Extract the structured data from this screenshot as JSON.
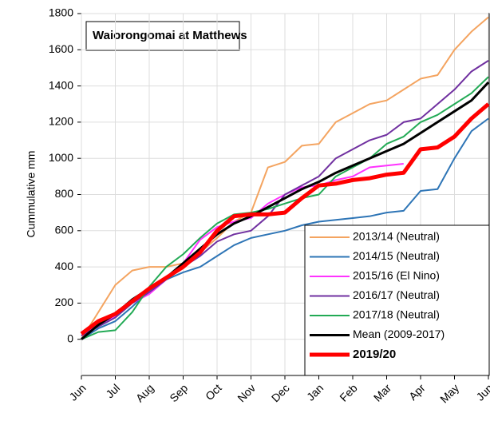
{
  "chart_data": {
    "type": "line",
    "title": "Waiorongomai at Matthews",
    "y_label": "Cummulative mm",
    "x": [
      0,
      0.5,
      1,
      1.5,
      2,
      2.5,
      3,
      3.5,
      4,
      4.5,
      5,
      5.5,
      6,
      6.5,
      7,
      7.5,
      8,
      8.5,
      9,
      9.5,
      10,
      10.5,
      11,
      11.5,
      12
    ],
    "xlim": [
      0,
      12
    ],
    "xticks": [
      {
        "value": 0,
        "label": "Jun"
      },
      {
        "value": 1,
        "label": "Jul"
      },
      {
        "value": 2,
        "label": "Aug"
      },
      {
        "value": 3,
        "label": "Sep"
      },
      {
        "value": 4,
        "label": "Oct"
      },
      {
        "value": 5,
        "label": "Nov"
      },
      {
        "value": 6,
        "label": "Dec"
      },
      {
        "value": 7,
        "label": "Jan"
      },
      {
        "value": 8,
        "label": "Feb"
      },
      {
        "value": 9,
        "label": "Mar"
      },
      {
        "value": 10,
        "label": "Apr"
      },
      {
        "value": 11,
        "label": "May"
      },
      {
        "value": 12,
        "label": "Jun"
      }
    ],
    "ylim": [
      -200,
      1800
    ],
    "yticks": [
      0,
      200,
      400,
      600,
      800,
      1000,
      1200,
      1400,
      1600,
      1800
    ],
    "series": [
      {
        "name": "2013/14 (Neutral)",
        "color": "#f4a460",
        "width": 2,
        "values": [
          0,
          150,
          300,
          380,
          400,
          400,
          420,
          480,
          560,
          650,
          700,
          950,
          980,
          1070,
          1080,
          1200,
          1250,
          1300,
          1320,
          1380,
          1440,
          1460,
          1600,
          1700,
          1780
        ]
      },
      {
        "name": "2014/15 (Neutral)",
        "color": "#2e75b6",
        "width": 2,
        "values": [
          0,
          60,
          100,
          180,
          270,
          330,
          370,
          400,
          460,
          520,
          560,
          580,
          600,
          630,
          650,
          660,
          670,
          680,
          700,
          710,
          820,
          830,
          1000,
          1150,
          1220
        ]
      },
      {
        "name": "2015/16 (El Nino)",
        "color": "#ff33ff",
        "width": 2,
        "values": [
          20,
          80,
          130,
          200,
          250,
          330,
          420,
          550,
          620,
          650,
          670,
          750,
          800,
          840,
          850,
          880,
          900,
          950,
          960,
          970,
          null,
          null,
          null,
          null,
          null
        ]
      },
      {
        "name": "2016/17 (Neutral)",
        "color": "#7030a0",
        "width": 2,
        "values": [
          20,
          70,
          120,
          200,
          260,
          330,
          400,
          460,
          540,
          580,
          600,
          680,
          800,
          850,
          900,
          1000,
          1050,
          1100,
          1130,
          1200,
          1220,
          1300,
          1380,
          1480,
          1540
        ]
      },
      {
        "name": "2017/18 (Neutral)",
        "color": "#22aa55",
        "width": 2,
        "values": [
          0,
          40,
          50,
          150,
          290,
          400,
          470,
          560,
          640,
          690,
          700,
          720,
          750,
          780,
          800,
          900,
          950,
          1000,
          1080,
          1120,
          1200,
          1240,
          1300,
          1360,
          1450
        ]
      },
      {
        "name": "Mean (2009-2017)",
        "color": "#000000",
        "width": 3,
        "values": [
          0,
          80,
          140,
          220,
          280,
          340,
          420,
          500,
          580,
          640,
          680,
          730,
          780,
          830,
          870,
          920,
          960,
          1000,
          1040,
          1080,
          1140,
          1200,
          1260,
          1320,
          1420
        ]
      },
      {
        "name": "2019/20",
        "color": "#ff0000",
        "width": 5,
        "values": [
          30,
          100,
          140,
          210,
          280,
          340,
          400,
          480,
          600,
          680,
          690,
          690,
          700,
          780,
          850,
          860,
          880,
          890,
          910,
          920,
          1050,
          1060,
          1120,
          1220,
          1300
        ]
      }
    ]
  }
}
